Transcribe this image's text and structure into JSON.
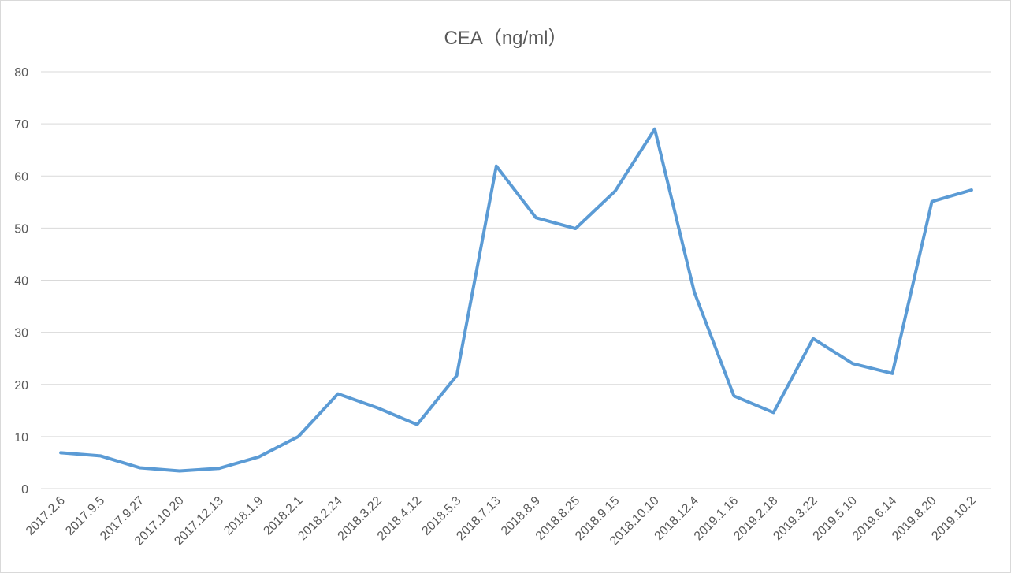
{
  "chart_data": {
    "type": "line",
    "title": "CEA（ng/ml）",
    "xlabel": "",
    "ylabel": "",
    "ylim": [
      0,
      80
    ],
    "yticks": [
      0,
      10,
      20,
      30,
      40,
      50,
      60,
      70,
      80
    ],
    "grid": true,
    "legend": "none",
    "line_color": "#5b9bd5",
    "categories": [
      "2017.2.6",
      "2017.9.5",
      "2017.9.27",
      "2017.10.20",
      "2017.12.13",
      "2018.1.9",
      "2018.2.1",
      "2018.2.24",
      "2018.3.22",
      "2018.4.12",
      "2018.5.3",
      "2018.7.13",
      "2018.8.9",
      "2018.8.25",
      "2018.9.15",
      "2018.10.10",
      "2018.12.4",
      "2019.1.16",
      "2019.2.18",
      "2019.3.22",
      "2019.5.10",
      "2019.6.14",
      "2019.8.20",
      "2019.10.2"
    ],
    "series": [
      {
        "values": [
          6.9,
          6.3,
          4.0,
          3.4,
          3.9,
          6.1,
          10.0,
          18.2,
          15.5,
          12.3,
          21.7,
          61.9,
          52.0,
          49.9,
          57.1,
          69.0,
          37.7,
          17.8,
          14.6,
          28.8,
          24.0,
          22.1,
          55.1,
          57.3
        ]
      }
    ]
  }
}
